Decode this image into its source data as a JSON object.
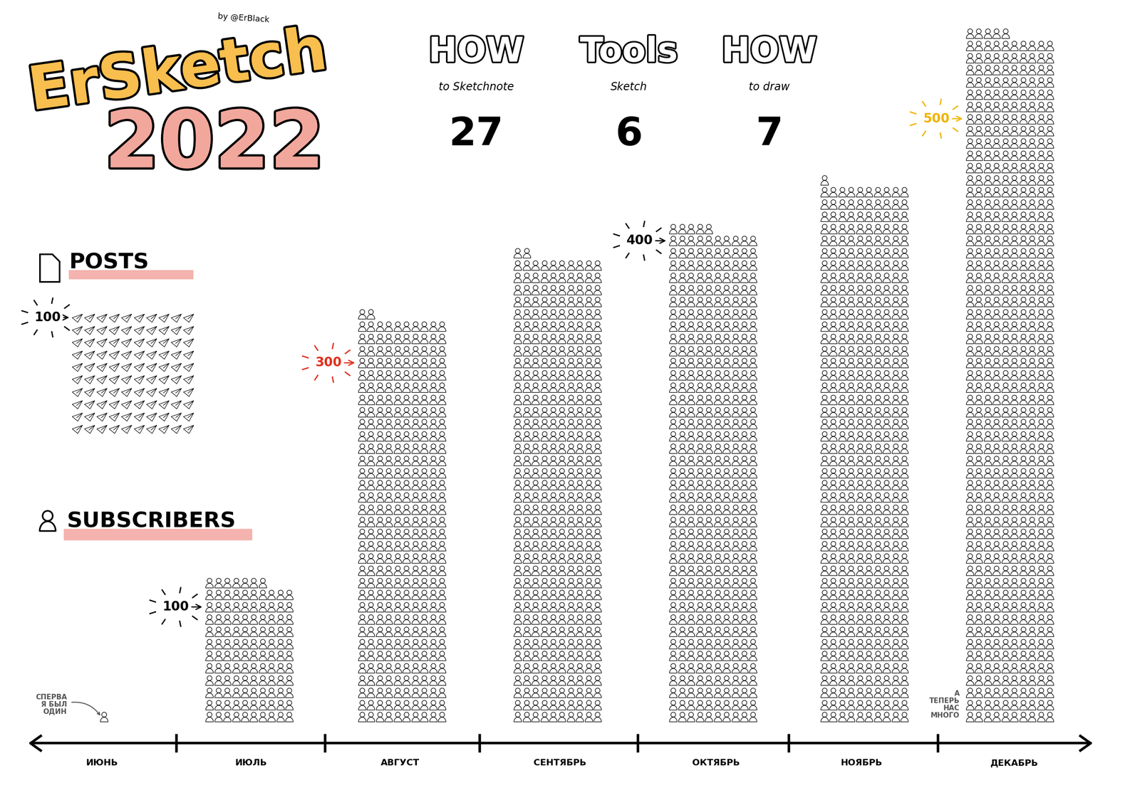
{
  "header": {
    "title": "ErSketch",
    "year": "2022",
    "author": "by @ErBlack"
  },
  "stats": [
    {
      "title": "HOW",
      "subtitle": "to Sketchnote",
      "value": 27
    },
    {
      "title": "Tools",
      "subtitle": "Sketch",
      "value": 6
    },
    {
      "title": "HOW",
      "subtitle": "to draw",
      "value": 7
    }
  ],
  "chart_data": [
    {
      "type": "pictograph",
      "title": "POSTS",
      "values": [
        100
      ],
      "milestones": [
        {
          "value": 100,
          "color": "#000000"
        }
      ]
    },
    {
      "type": "pictograph",
      "title": "SUBSCRIBERS",
      "tick_labels": false,
      "categories": [
        "ИЮНЬ",
        "ИЮЛЬ",
        "АВГУСТ",
        "СЕНТЯБРЬ",
        "ОКТЯБРЬ",
        "НОЯБРЬ",
        "ДЕКАБРЬ"
      ],
      "values": [
        1,
        117,
        332,
        382,
        405,
        441,
        565
      ],
      "milestones": [
        {
          "category": "ИЮЛЬ",
          "value": 100,
          "color": "#000000"
        },
        {
          "category": "АВГУСТ",
          "value": 300,
          "color": "#E0301E"
        },
        {
          "category": "ОКТЯБРЬ",
          "value": 400,
          "color": "#000000"
        },
        {
          "category": "ДЕКАБРЬ",
          "value": 500,
          "color": "#F0B400"
        }
      ],
      "annotations": [
        {
          "category": "ИЮНЬ",
          "text": "СПЕРВА\nЯ БЫЛ\nОДИН"
        },
        {
          "category": "ДЕКАБРЬ",
          "text": "А\nТЕПЕРЬ\nНАС\nМНОГО"
        }
      ]
    }
  ]
}
